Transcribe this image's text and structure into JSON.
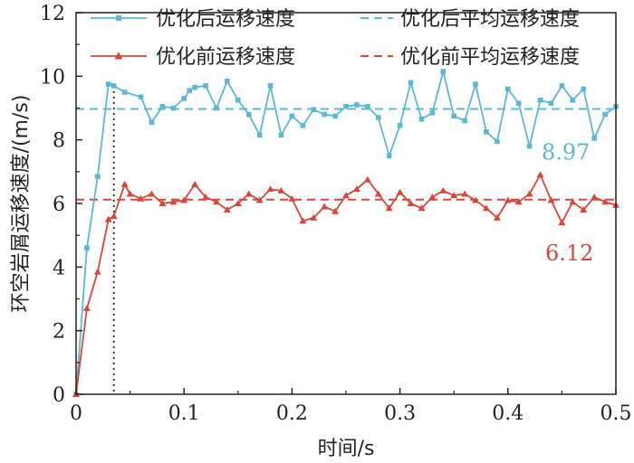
{
  "chart_data": {
    "type": "line",
    "xlabel": "时间/s",
    "ylabel": "环空岩屑运移速度/(m/s)",
    "xlim": [
      0,
      0.5
    ],
    "ylim": [
      0,
      12
    ],
    "x_ticks": [
      "0",
      "0.1",
      "0.2",
      "0.3",
      "0.4",
      "0.5"
    ],
    "y_ticks": [
      "0",
      "2",
      "4",
      "6",
      "8",
      "10",
      "12"
    ],
    "legend_placement": "top",
    "grid": false,
    "marker_line_x": 0.035,
    "series": [
      {
        "name": "优化后运移速度",
        "color": "#5bb8d6",
        "marker": "square",
        "x": [
          0,
          0.01,
          0.02,
          0.03,
          0.035,
          0.045,
          0.06,
          0.07,
          0.08,
          0.09,
          0.1,
          0.105,
          0.11,
          0.12,
          0.13,
          0.14,
          0.15,
          0.16,
          0.17,
          0.18,
          0.19,
          0.2,
          0.21,
          0.22,
          0.23,
          0.24,
          0.25,
          0.26,
          0.27,
          0.28,
          0.29,
          0.3,
          0.31,
          0.32,
          0.33,
          0.34,
          0.35,
          0.36,
          0.37,
          0.38,
          0.39,
          0.4,
          0.41,
          0.42,
          0.43,
          0.44,
          0.45,
          0.46,
          0.47,
          0.48,
          0.49,
          0.5
        ],
        "values": [
          0,
          4.6,
          6.85,
          9.75,
          9.7,
          9.5,
          9.35,
          8.55,
          9.05,
          9.0,
          9.3,
          9.55,
          9.65,
          9.7,
          9.0,
          9.85,
          9.25,
          8.8,
          8.15,
          9.7,
          8.15,
          8.75,
          8.45,
          8.95,
          8.8,
          8.75,
          9.05,
          9.1,
          9.05,
          8.7,
          7.5,
          8.45,
          9.8,
          8.65,
          8.85,
          10.15,
          8.75,
          8.6,
          9.75,
          8.25,
          7.95,
          9.6,
          9.15,
          7.8,
          9.25,
          9.15,
          9.7,
          9.25,
          9.6,
          8.05,
          8.8,
          9.05
        ]
      },
      {
        "name": "优化前运移速度",
        "color": "#d9473a",
        "marker": "triangle",
        "x": [
          0,
          0.01,
          0.02,
          0.03,
          0.035,
          0.045,
          0.05,
          0.06,
          0.07,
          0.08,
          0.09,
          0.1,
          0.11,
          0.12,
          0.13,
          0.14,
          0.15,
          0.16,
          0.17,
          0.18,
          0.19,
          0.2,
          0.21,
          0.22,
          0.23,
          0.24,
          0.25,
          0.26,
          0.27,
          0.28,
          0.29,
          0.3,
          0.31,
          0.32,
          0.33,
          0.34,
          0.35,
          0.36,
          0.37,
          0.38,
          0.39,
          0.4,
          0.41,
          0.42,
          0.43,
          0.44,
          0.45,
          0.46,
          0.47,
          0.48,
          0.49,
          0.5
        ],
        "values": [
          0,
          2.7,
          3.85,
          5.5,
          5.6,
          6.6,
          6.3,
          6.15,
          6.3,
          6.0,
          6.05,
          6.1,
          6.6,
          6.2,
          6.05,
          5.8,
          6.0,
          6.3,
          6.1,
          6.45,
          6.4,
          6.15,
          5.45,
          5.55,
          5.9,
          5.75,
          6.25,
          6.45,
          6.75,
          6.3,
          5.85,
          6.35,
          6.0,
          5.85,
          6.2,
          6.4,
          6.25,
          6.3,
          6.1,
          5.85,
          5.55,
          6.1,
          6.05,
          6.3,
          6.9,
          6.1,
          5.4,
          6.05,
          5.8,
          6.2,
          6.05,
          5.95
        ]
      },
      {
        "name": "优化后平均运移速度",
        "color": "#5bb8d6",
        "style": "dashed",
        "value": 8.97,
        "label": "8.97"
      },
      {
        "name": "优化前平均运移速度",
        "color": "#d9473a",
        "style": "dashed",
        "value": 6.12,
        "label": "6.12"
      }
    ]
  }
}
